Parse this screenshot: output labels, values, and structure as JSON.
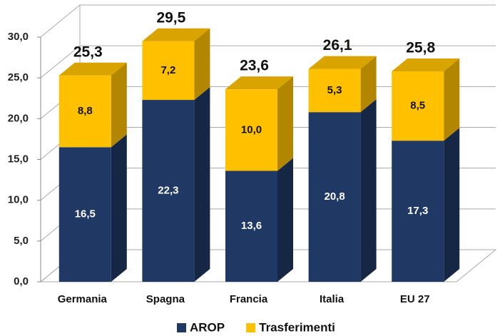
{
  "chart_data": {
    "type": "stacked_bar_3d",
    "categories": [
      "Germania",
      "Spagna",
      "Francia",
      "Italia",
      "EU 27"
    ],
    "series": [
      {
        "name": "AROP",
        "color": "#1f3864",
        "values": [
          16.5,
          22.3,
          13.6,
          20.8,
          17.3
        ],
        "value_labels": [
          "16,5",
          "22,3",
          "13,6",
          "20,8",
          "17,3"
        ]
      },
      {
        "name": "Trasferimenti",
        "color": "#ffc000",
        "values": [
          8.8,
          7.2,
          10.0,
          5.3,
          8.5
        ],
        "value_labels": [
          "8,8",
          "7,2",
          "10,0",
          "5,3",
          "8,5"
        ]
      }
    ],
    "totals": [
      25.3,
      29.5,
      23.6,
      26.1,
      25.8
    ],
    "total_labels": [
      "25,3",
      "29,5",
      "23,6",
      "26,1",
      "25,8"
    ],
    "ylim": [
      0,
      30
    ],
    "yticks": [
      {
        "value": 0,
        "label": "0,0"
      },
      {
        "value": 5,
        "label": "5,0"
      },
      {
        "value": 10,
        "label": "10,0"
      },
      {
        "value": 15,
        "label": "15,0"
      },
      {
        "value": 20,
        "label": "20,0"
      },
      {
        "value": 25,
        "label": "25,0"
      },
      {
        "value": 30,
        "label": "30,0"
      }
    ],
    "grid": true,
    "legend": "bottom"
  }
}
